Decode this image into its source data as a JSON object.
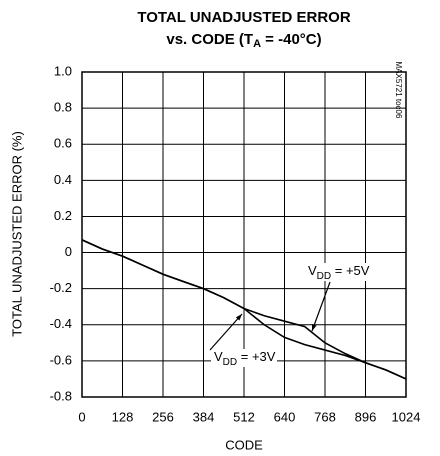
{
  "chart_data": {
    "type": "line",
    "title": "TOTAL UNADJUSTED ERROR",
    "subtitle_parts": [
      "vs. CODE (T",
      "A",
      " = -40°C)"
    ],
    "x_label": "CODE",
    "y_label": "TOTAL UNADJUSTED ERROR (%)",
    "side_note": "MAX5721 toc06",
    "annotations": [
      {
        "parts": [
          "V",
          "DD",
          " = +5V"
        ]
      },
      {
        "parts": [
          "V",
          "DD",
          " = +3V"
        ]
      }
    ],
    "x": [
      0,
      64,
      128,
      192,
      256,
      320,
      384,
      448,
      512,
      576,
      640,
      704,
      768,
      832,
      896,
      960,
      1024
    ],
    "series": [
      {
        "color": "#000000",
        "values": [
          0.07,
          0.02,
          -0.02,
          -0.07,
          -0.12,
          -0.16,
          -0.2,
          -0.25,
          -0.31,
          -0.35,
          -0.38,
          -0.41,
          -0.5,
          -0.56,
          -0.61,
          -0.65,
          -0.7
        ]
      },
      {
        "color": "#000000",
        "values": [
          0.07,
          0.02,
          -0.02,
          -0.07,
          -0.12,
          -0.16,
          -0.2,
          -0.25,
          -0.31,
          -0.4,
          -0.47,
          -0.51,
          -0.54,
          -0.57,
          -0.61,
          -0.65,
          -0.7
        ]
      }
    ],
    "xlim": [
      0,
      1024
    ],
    "xticks": [
      0,
      128,
      256,
      384,
      512,
      640,
      768,
      896,
      1024
    ],
    "ylim": [
      -0.8,
      1
    ],
    "yticks": [
      {
        "value": 1,
        "label": "1.0"
      },
      0.8,
      0.6,
      0.4,
      0.2,
      0,
      -0.2,
      -0.4,
      -0.6,
      -0.8
    ],
    "grid": true
  }
}
